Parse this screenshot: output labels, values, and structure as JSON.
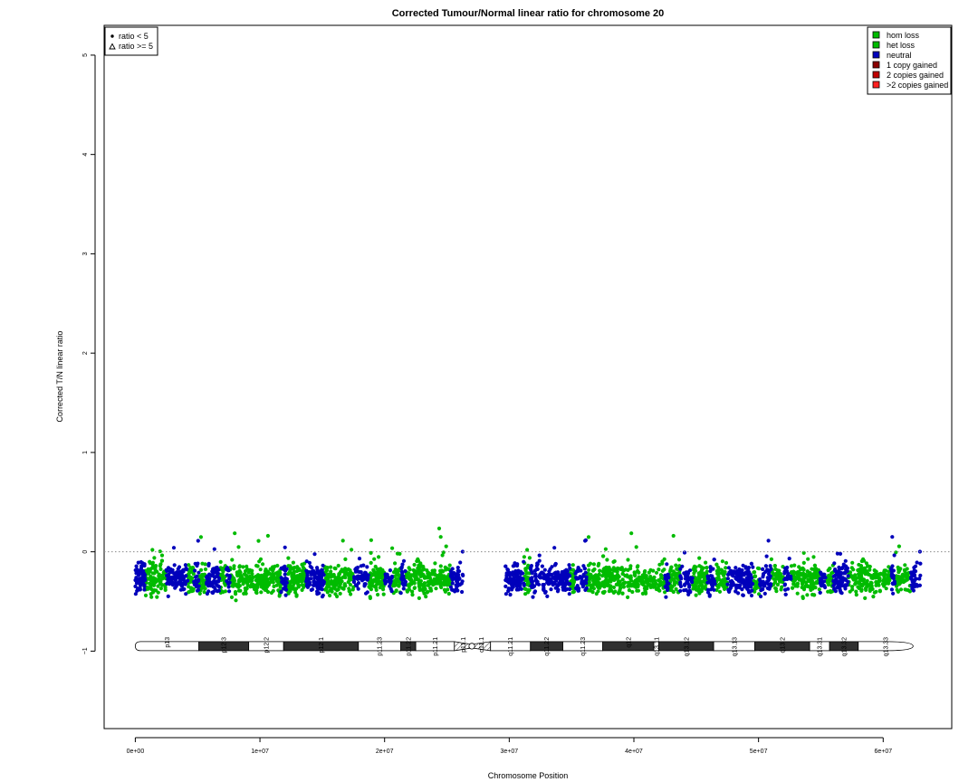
{
  "chart_data": {
    "type": "scatter",
    "title": "Corrected Tumour/Normal linear ratio for chromosome  20",
    "xlabel": "Chromosome Position",
    "ylabel": "Corrected T/N linear ratio",
    "xlim": [
      -2500000,
      65500000
    ],
    "ylim": [
      -1.78,
      5.3
    ],
    "x_ticks": [
      0,
      10000000,
      20000000,
      30000000,
      40000000,
      50000000,
      60000000
    ],
    "x_tick_labels": [
      "0e+00",
      "1e+07",
      "2e+07",
      "3e+07",
      "4e+07",
      "5e+07",
      "6e+07"
    ],
    "y_ticks": [
      -1,
      0,
      1,
      2,
      3,
      4,
      5
    ],
    "y_tick_labels": [
      "−1",
      "0",
      "1",
      "2",
      "3",
      "4",
      "5"
    ],
    "reference_line": {
      "y": 0,
      "style": "dotted",
      "color": "#8a8a8a"
    },
    "data_extent": {
      "p_arm": [
        0,
        26300000
      ],
      "gap": [
        26300000,
        29700000
      ],
      "q_arm": [
        29700000,
        63000000
      ]
    },
    "series": [
      {
        "name": "het loss",
        "color": "#00bb00",
        "typical_range": [
          -0.55,
          0.12
        ]
      },
      {
        "name": "neutral",
        "color": "#0000bb",
        "typical_range": [
          -0.55,
          0.12
        ]
      }
    ],
    "neutral_segments": [
      [
        0,
        800000
      ],
      [
        2500000,
        4200000
      ],
      [
        4700000,
        5100000
      ],
      [
        5700000,
        6800000
      ],
      [
        7300000,
        7600000
      ],
      [
        11700000,
        12200000
      ],
      [
        13700000,
        15200000
      ],
      [
        17500000,
        18700000
      ],
      [
        20000000,
        20600000
      ],
      [
        21300000,
        21700000
      ],
      [
        25300000,
        26300000
      ],
      [
        29700000,
        31200000
      ],
      [
        31700000,
        34900000
      ],
      [
        35300000,
        36200000
      ],
      [
        42500000,
        42800000
      ],
      [
        43700000,
        44700000
      ],
      [
        45900000,
        46600000
      ],
      [
        47500000,
        49600000
      ],
      [
        50100000,
        51000000
      ],
      [
        52000000,
        52600000
      ],
      [
        54900000,
        55400000
      ],
      [
        56000000,
        57200000
      ],
      [
        60600000,
        61000000
      ],
      [
        62200000,
        63000000
      ]
    ],
    "point_legend": {
      "items": [
        {
          "label": "ratio < 5",
          "symbol": "dot"
        },
        {
          "label": "ratio >= 5",
          "symbol": "triangle"
        }
      ]
    },
    "color_legend": {
      "items": [
        {
          "label": "hom loss",
          "color": "#00bb00"
        },
        {
          "label": "het loss",
          "color": "#00bb00"
        },
        {
          "label": "neutral",
          "color": "#0000bb"
        },
        {
          "label": "1 copy gained",
          "color": "#8b0000"
        },
        {
          "label": "2 copies gained",
          "color": "#c00000"
        },
        {
          "label": ">2 copies gained",
          "color": "#ff2020"
        }
      ]
    },
    "ideogram": {
      "y": -0.95,
      "centromere": 27000000,
      "bands": [
        {
          "name": "p13",
          "start": 0,
          "end": 5100000,
          "stain": "white"
        },
        {
          "name": "p12.3",
          "start": 5100000,
          "end": 9100000,
          "stain": "black"
        },
        {
          "name": "p12.2",
          "start": 9100000,
          "end": 11900000,
          "stain": "white"
        },
        {
          "name": "p12.1",
          "start": 11900000,
          "end": 17900000,
          "stain": "black"
        },
        {
          "name": "p11.23",
          "start": 17900000,
          "end": 21300000,
          "stain": "white"
        },
        {
          "name": "p11.22",
          "start": 21300000,
          "end": 22500000,
          "stain": "black"
        },
        {
          "name": "p11.21",
          "start": 22500000,
          "end": 25600000,
          "stain": "white"
        },
        {
          "name": "p11.1",
          "start": 25600000,
          "end": 27000000,
          "stain": "hatched"
        },
        {
          "name": "q11.1",
          "start": 27000000,
          "end": 28500000,
          "stain": "hatched"
        },
        {
          "name": "q11.21",
          "start": 28500000,
          "end": 31700000,
          "stain": "white"
        },
        {
          "name": "q11.22",
          "start": 31700000,
          "end": 34300000,
          "stain": "black"
        },
        {
          "name": "q11.23",
          "start": 34300000,
          "end": 37500000,
          "stain": "white"
        },
        {
          "name": "q12",
          "start": 37500000,
          "end": 41600000,
          "stain": "black"
        },
        {
          "name": "q13.11",
          "start": 41600000,
          "end": 42000000,
          "stain": "white"
        },
        {
          "name": "q13.12",
          "start": 42000000,
          "end": 46400000,
          "stain": "black"
        },
        {
          "name": "q13.13",
          "start": 46400000,
          "end": 49700000,
          "stain": "white"
        },
        {
          "name": "q13.2",
          "start": 49700000,
          "end": 54100000,
          "stain": "black"
        },
        {
          "name": "q13.31",
          "start": 54100000,
          "end": 55700000,
          "stain": "white"
        },
        {
          "name": "q13.32",
          "start": 55700000,
          "end": 58000000,
          "stain": "black"
        },
        {
          "name": "q13.33",
          "start": 58000000,
          "end": 62400000,
          "stain": "white"
        }
      ]
    }
  }
}
